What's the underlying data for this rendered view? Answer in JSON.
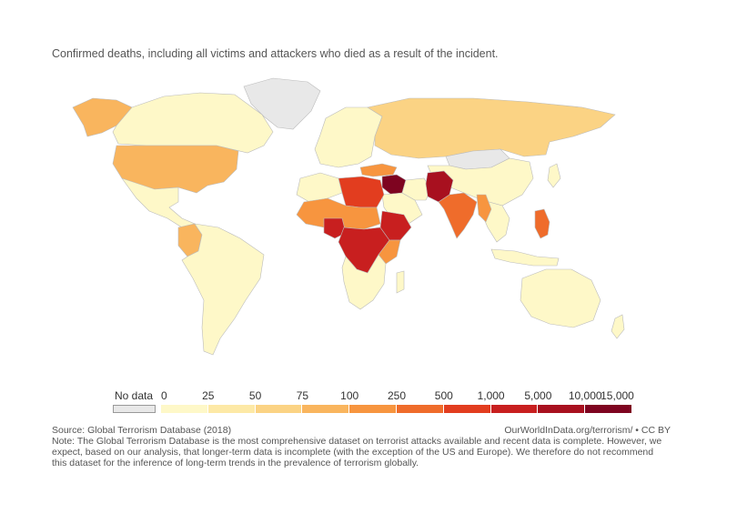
{
  "subtitle": "Confirmed deaths, including all victims and attackers who died as a result of the incident.",
  "legend": {
    "no_data_label": "No data",
    "no_data_color": "#e8e8e8",
    "ticks": [
      "0",
      "25",
      "50",
      "75",
      "100",
      "250",
      "500",
      "1,000",
      "5,000",
      "10,000",
      "15,000"
    ],
    "colors": [
      "#fef8c8",
      "#fde9a6",
      "#fbd384",
      "#f9b55e",
      "#f7953f",
      "#ef6c2b",
      "#e23d1f",
      "#c81f1f",
      "#a8101f",
      "#7e0420"
    ]
  },
  "footer": {
    "source": "Source: Global Terrorism Database (2018)",
    "credit": "OurWorldInData.org/terrorism/ • CC BY",
    "note": "Note: The Global Terrorism Database is the most comprehensive dataset on terrorist attacks available and recent data is complete. However, we expect, based on our analysis, that longer-term data is incomplete (with the exception of the US and Europe). We therefore do not recommend this dataset for the inference of long-term trends in the prevalence of terrorism globally."
  },
  "regions": [
    {
      "name": "Greenland",
      "color": "#e8e8e8"
    },
    {
      "name": "Alaska",
      "color": "#f9b55e"
    },
    {
      "name": "Canada",
      "color": "#fef8c8"
    },
    {
      "name": "United States",
      "color": "#f9b55e"
    },
    {
      "name": "Mexico",
      "color": "#fef8c8"
    },
    {
      "name": "Colombia",
      "color": "#f9b55e"
    },
    {
      "name": "South America",
      "color": "#fef8c8"
    },
    {
      "name": "Russia",
      "color": "#fbd384"
    },
    {
      "name": "Europe",
      "color": "#fef8c8"
    },
    {
      "name": "Turkey",
      "color": "#f7953f"
    },
    {
      "name": "Syria / Iraq",
      "color": "#7e0420"
    },
    {
      "name": "Afghanistan / Pakistan",
      "color": "#a8101f"
    },
    {
      "name": "India",
      "color": "#ef6c2b"
    },
    {
      "name": "China",
      "color": "#fef8c8"
    },
    {
      "name": "Mongolia",
      "color": "#e8e8e8"
    },
    {
      "name": "Libya / Egypt",
      "color": "#e23d1f"
    },
    {
      "name": "Nigeria",
      "color": "#c81f1f"
    },
    {
      "name": "Somalia",
      "color": "#c81f1f"
    },
    {
      "name": "Philippines",
      "color": "#ef6c2b"
    },
    {
      "name": "Australia",
      "color": "#fef8c8"
    }
  ]
}
